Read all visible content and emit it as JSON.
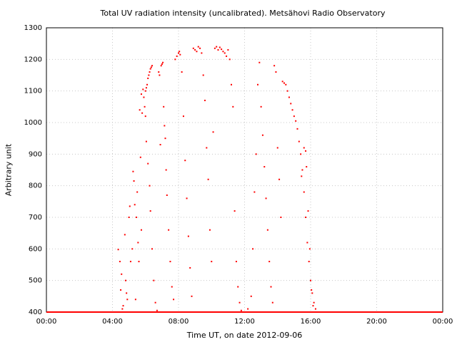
{
  "chart_data": {
    "type": "scatter",
    "title": "Total UV radiation intensity (uncalibrated). Metsähovi Radio Observatory",
    "xlabel": "Time UT, on date 2012-09-06",
    "ylabel": "Arbitrary unit",
    "xlim_hours": [
      0,
      24
    ],
    "ylim": [
      400,
      1300
    ],
    "x_ticks": [
      "00:00",
      "04:00",
      "08:00",
      "12:00",
      "16:00",
      "20:00",
      "00:00"
    ],
    "y_ticks": [
      400,
      500,
      600,
      700,
      800,
      900,
      1000,
      1100,
      1200,
      1300
    ],
    "grid": true,
    "marker_color": "#ff0000",
    "series": [
      {
        "points": [
          [
            4.35,
            598
          ],
          [
            4.45,
            560
          ],
          [
            4.5,
            470
          ],
          [
            4.55,
            520
          ],
          [
            4.6,
            410
          ],
          [
            4.65,
            420
          ],
          [
            4.75,
            645
          ],
          [
            4.8,
            500
          ],
          [
            4.85,
            460
          ],
          [
            4.9,
            440
          ],
          [
            5.0,
            700
          ],
          [
            5.05,
            735
          ],
          [
            5.1,
            560
          ],
          [
            5.2,
            600
          ],
          [
            5.25,
            845
          ],
          [
            5.3,
            815
          ],
          [
            5.35,
            740
          ],
          [
            5.4,
            440
          ],
          [
            5.45,
            700
          ],
          [
            5.5,
            780
          ],
          [
            5.55,
            620
          ],
          [
            5.6,
            560
          ],
          [
            5.7,
            890
          ],
          [
            5.75,
            660
          ],
          [
            5.85,
            1105
          ],
          [
            5.9,
            1080
          ],
          [
            5.95,
            1050
          ],
          [
            6.0,
            1100
          ],
          [
            6.05,
            1110
          ],
          [
            6.1,
            1120
          ],
          [
            6.15,
            1140
          ],
          [
            6.2,
            1150
          ],
          [
            6.25,
            1160
          ],
          [
            6.3,
            1170
          ],
          [
            6.35,
            1175
          ],
          [
            6.4,
            1180
          ],
          [
            5.65,
            1040
          ],
          [
            5.75,
            1090
          ],
          [
            5.8,
            1030
          ],
          [
            6.0,
            1020
          ],
          [
            6.05,
            940
          ],
          [
            6.15,
            870
          ],
          [
            6.25,
            800
          ],
          [
            6.3,
            720
          ],
          [
            6.4,
            600
          ],
          [
            6.5,
            500
          ],
          [
            6.6,
            430
          ],
          [
            6.7,
            405
          ],
          [
            6.8,
            1160
          ],
          [
            6.85,
            1150
          ],
          [
            6.95,
            1180
          ],
          [
            7.0,
            1185
          ],
          [
            7.05,
            1190
          ],
          [
            6.9,
            930
          ],
          [
            7.1,
            1050
          ],
          [
            7.15,
            990
          ],
          [
            7.2,
            950
          ],
          [
            7.25,
            850
          ],
          [
            7.3,
            770
          ],
          [
            7.4,
            660
          ],
          [
            7.5,
            560
          ],
          [
            7.6,
            480
          ],
          [
            7.7,
            440
          ],
          [
            7.8,
            1200
          ],
          [
            7.9,
            1210
          ],
          [
            8.0,
            1220
          ],
          [
            8.05,
            1225
          ],
          [
            8.1,
            1215
          ],
          [
            8.2,
            1160
          ],
          [
            8.3,
            1020
          ],
          [
            8.4,
            880
          ],
          [
            8.5,
            760
          ],
          [
            8.6,
            640
          ],
          [
            8.7,
            540
          ],
          [
            8.8,
            450
          ],
          [
            8.9,
            1235
          ],
          [
            9.0,
            1230
          ],
          [
            9.1,
            1225
          ],
          [
            9.2,
            1240
          ],
          [
            9.3,
            1235
          ],
          [
            9.4,
            1220
          ],
          [
            9.5,
            1150
          ],
          [
            9.6,
            1070
          ],
          [
            9.7,
            920
          ],
          [
            9.8,
            820
          ],
          [
            9.9,
            660
          ],
          [
            10.0,
            560
          ],
          [
            10.1,
            970
          ],
          [
            10.2,
            1235
          ],
          [
            10.3,
            1240
          ],
          [
            10.4,
            1230
          ],
          [
            10.5,
            1238
          ],
          [
            10.6,
            1232
          ],
          [
            10.7,
            1225
          ],
          [
            10.8,
            1220
          ],
          [
            10.9,
            1210
          ],
          [
            11.0,
            1230
          ],
          [
            11.1,
            1200
          ],
          [
            11.2,
            1120
          ],
          [
            11.3,
            1050
          ],
          [
            11.4,
            720
          ],
          [
            11.5,
            560
          ],
          [
            11.6,
            480
          ],
          [
            11.7,
            430
          ],
          [
            11.8,
            405
          ],
          [
            12.0,
            400
          ],
          [
            12.2,
            410
          ],
          [
            12.4,
            450
          ],
          [
            12.5,
            600
          ],
          [
            12.6,
            780
          ],
          [
            12.7,
            900
          ],
          [
            12.8,
            1120
          ],
          [
            12.9,
            1190
          ],
          [
            13.0,
            1050
          ],
          [
            13.1,
            960
          ],
          [
            13.2,
            860
          ],
          [
            13.3,
            760
          ],
          [
            13.4,
            660
          ],
          [
            13.5,
            560
          ],
          [
            13.6,
            480
          ],
          [
            13.7,
            430
          ],
          [
            13.8,
            1180
          ],
          [
            13.9,
            1160
          ],
          [
            14.0,
            920
          ],
          [
            14.1,
            820
          ],
          [
            14.2,
            700
          ],
          [
            14.3,
            1130
          ],
          [
            14.4,
            1125
          ],
          [
            14.5,
            1120
          ],
          [
            14.6,
            1100
          ],
          [
            14.7,
            1080
          ],
          [
            14.8,
            1060
          ],
          [
            14.9,
            1040
          ],
          [
            15.0,
            1020
          ],
          [
            15.1,
            1005
          ],
          [
            15.2,
            980
          ],
          [
            15.3,
            940
          ],
          [
            15.4,
            900
          ],
          [
            15.5,
            850
          ],
          [
            15.6,
            780
          ],
          [
            15.7,
            700
          ],
          [
            15.8,
            620
          ],
          [
            15.9,
            560
          ],
          [
            16.0,
            500
          ],
          [
            16.1,
            460
          ],
          [
            16.2,
            430
          ],
          [
            16.3,
            410
          ],
          [
            15.45,
            830
          ],
          [
            15.6,
            920
          ],
          [
            15.7,
            910
          ],
          [
            15.75,
            860
          ],
          [
            15.85,
            720
          ],
          [
            15.95,
            600
          ],
          [
            16.05,
            470
          ],
          [
            16.15,
            420
          ]
        ]
      }
    ]
  }
}
